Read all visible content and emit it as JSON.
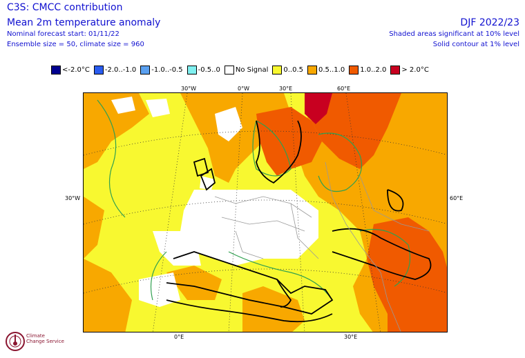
{
  "header": {
    "title": "C3S: CMCC contribution",
    "subtitle": "Mean 2m temperature anomaly",
    "forecast_start": "Nominal forecast start: 01/11/22",
    "ensemble": "Ensemble size = 50, climate size = 960",
    "season": "DJF 2022/23",
    "shaded_note": "Shaded areas significant at 10% level",
    "contour_note": "Solid contour at 1% level"
  },
  "legend": [
    {
      "label": "<-2.0°C",
      "color": "#000090"
    },
    {
      "label": "-2.0..-1.0",
      "color": "#2a5cf0"
    },
    {
      "label": "-1.0..-0.5",
      "color": "#5aa0f0"
    },
    {
      "label": "-0.5..0",
      "color": "#80f0f0"
    },
    {
      "label": "No Signal",
      "color": "#ffffff"
    },
    {
      "label": "0..0.5",
      "color": "#f8f830"
    },
    {
      "label": "0.5..1.0",
      "color": "#f8a800"
    },
    {
      "label": "1.0..2.0",
      "color": "#f05a00"
    },
    {
      "label": "> 2.0°C",
      "color": "#c80020"
    }
  ],
  "map_labels": {
    "top": [
      "30°W",
      "0°W",
      "30°E",
      "60°E"
    ],
    "left": "30°W",
    "right": "60°E",
    "bottom": [
      "0°E",
      "30°E"
    ]
  },
  "logo": {
    "line1": "Climate",
    "line2": "Change Service"
  }
}
